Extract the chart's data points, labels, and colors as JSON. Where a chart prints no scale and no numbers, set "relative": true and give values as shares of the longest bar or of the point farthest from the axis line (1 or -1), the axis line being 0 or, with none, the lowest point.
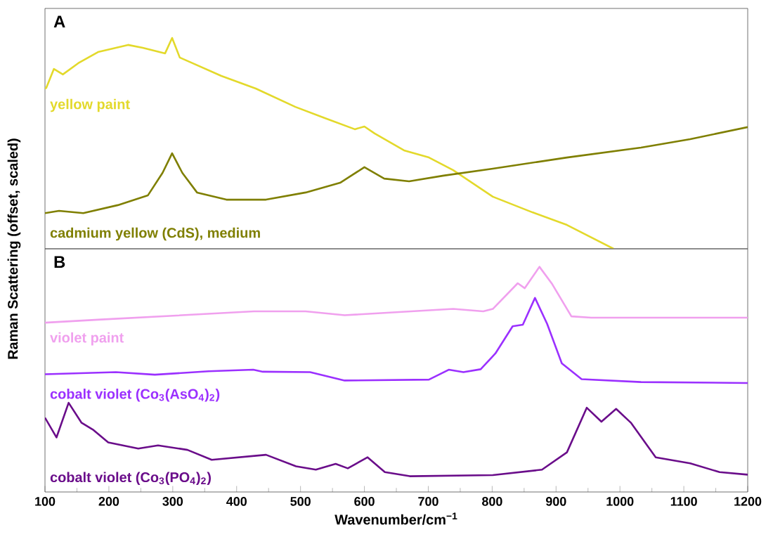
{
  "chart_data": [
    {
      "type": "line",
      "relative": true,
      "ylabel": "Raman Scattering (offset, scaled)",
      "xlim": [
        100,
        1200
      ],
      "tick_labels": false,
      "annotations": [
        "A"
      ],
      "series": [
        {
          "name": "yellow paint",
          "color": "#e3d92b",
          "x": [
            100,
            102,
            114,
            128,
            152,
            183,
            230,
            253,
            288,
            299,
            311,
            326,
            376,
            430,
            492,
            538,
            585,
            600,
            616,
            662,
            701,
            739,
            801,
            863,
            917,
            990
          ],
          "values": [
            0.76,
            0.763,
            0.853,
            0.827,
            0.88,
            0.933,
            0.967,
            0.953,
            0.927,
            1.0,
            0.907,
            0.887,
            0.82,
            0.76,
            0.673,
            0.62,
            0.567,
            0.58,
            0.547,
            0.467,
            0.433,
            0.373,
            0.247,
            0.173,
            0.113,
            0
          ]
        },
        {
          "name": "cadmium yellow (CdS), medium",
          "color": "#7f7f00",
          "x": [
            100,
            122,
            160,
            214,
            261,
            284,
            299,
            315,
            338,
            384,
            446,
            508,
            562,
            600,
            631,
            670,
            724,
            801,
            917,
            1033,
            1110,
            1200
          ],
          "values": [
            0.169,
            0.18,
            0.169,
            0.207,
            0.253,
            0.36,
            0.453,
            0.36,
            0.267,
            0.233,
            0.233,
            0.267,
            0.313,
            0.387,
            0.333,
            0.32,
            0.347,
            0.38,
            0.433,
            0.48,
            0.52,
            0.577
          ]
        }
      ]
    },
    {
      "type": "line",
      "relative": true,
      "xlabel": "Wavenumber/cm$^{−1}$",
      "xlim": [
        100,
        1200
      ],
      "xticks": [
        100,
        200,
        300,
        400,
        500,
        600,
        700,
        800,
        900,
        1000,
        1100,
        1200
      ],
      "tick_labels": "x",
      "annotations": [
        "B"
      ],
      "series": [
        {
          "name": "violet paint",
          "color": "#f0a0ee",
          "x": [
            100,
            183,
            427,
            508,
            569,
            739,
            786,
            801,
            840,
            851,
            874,
            894,
            924,
            955,
            1200
          ],
          "values": [
            0.752,
            0.765,
            0.802,
            0.802,
            0.785,
            0.813,
            0.802,
            0.813,
            0.927,
            0.905,
            1.0,
            0.923,
            0.78,
            0.774,
            0.774
          ]
        },
        {
          "name": "cobalt violet (Co$_{3}$(AsO$_{4}$)$_{2}$)",
          "color": "#9b30ff",
          "x": [
            100,
            211,
            272,
            356,
            426,
            441,
            515,
            569,
            701,
            732,
            755,
            782,
            805,
            832,
            848,
            867,
            886,
            909,
            940,
            1033,
            1200
          ],
          "values": [
            0.523,
            0.532,
            0.521,
            0.536,
            0.543,
            0.534,
            0.532,
            0.495,
            0.499,
            0.543,
            0.532,
            0.545,
            0.615,
            0.736,
            0.743,
            0.862,
            0.747,
            0.571,
            0.501,
            0.488,
            0.484
          ]
        },
        {
          "name": "cobalt violet (Co$_{3}$(PO$_{4}$)$_{2}$)",
          "color": "#6a0d8a",
          "x": [
            100,
            118,
            137,
            157,
            176,
            199,
            246,
            277,
            323,
            361,
            446,
            493,
            524,
            555,
            574,
            605,
            632,
            671,
            801,
            878,
            917,
            948,
            971,
            994,
            1017,
            1056,
            1110,
            1156,
            1200
          ],
          "values": [
            0.33,
            0.242,
            0.396,
            0.308,
            0.275,
            0.22,
            0.193,
            0.207,
            0.187,
            0.143,
            0.165,
            0.114,
            0.099,
            0.125,
            0.105,
            0.154,
            0.088,
            0.07,
            0.075,
            0.099,
            0.176,
            0.374,
            0.312,
            0.369,
            0.308,
            0.154,
            0.127,
            0.088,
            0.077
          ]
        }
      ]
    }
  ]
}
